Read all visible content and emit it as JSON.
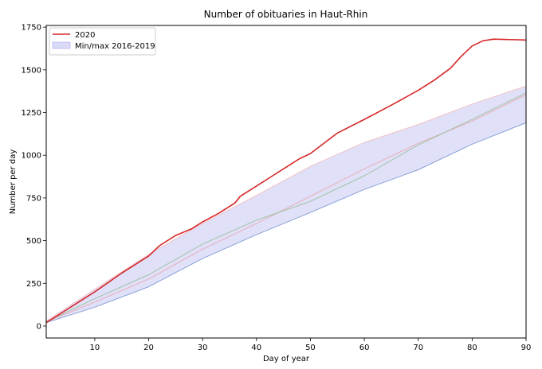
{
  "chart_data": {
    "type": "line",
    "title": "Number of obituaries in Haut-Rhin",
    "xlabel": "Day of year",
    "ylabel": "Number per day",
    "xlim": [
      1,
      90
    ],
    "ylim": [
      -70,
      1760
    ],
    "xticks": [
      10,
      20,
      30,
      40,
      50,
      60,
      70,
      80,
      90
    ],
    "yticks": [
      0,
      250,
      500,
      750,
      1000,
      1250,
      1500,
      1750
    ],
    "grid": false,
    "legend_position": "top-left",
    "legend": [
      {
        "label": "2020",
        "kind": "line",
        "color": "#d62728"
      },
      {
        "label": "Min/max 2016-2019",
        "kind": "band",
        "color": "#ccccf5"
      }
    ],
    "band": {
      "x": [
        1,
        10,
        20,
        30,
        40,
        50,
        60,
        70,
        80,
        90
      ],
      "lower": [
        20,
        110,
        230,
        395,
        535,
        665,
        800,
        915,
        1065,
        1190
      ],
      "upper": [
        30,
        215,
        420,
        600,
        765,
        935,
        1075,
        1180,
        1300,
        1405
      ]
    },
    "series": [
      {
        "name": "2020",
        "color": "#d62728",
        "x": [
          1,
          5,
          8,
          10,
          15,
          20,
          22,
          25,
          28,
          30,
          33,
          36,
          37,
          40,
          43,
          46,
          48,
          50,
          55,
          60,
          63,
          66,
          70,
          73,
          76,
          78,
          80,
          82,
          84,
          90
        ],
        "values": [
          20,
          100,
          160,
          200,
          310,
          410,
          470,
          530,
          570,
          610,
          660,
          720,
          760,
          820,
          880,
          940,
          980,
          1010,
          1130,
          1210,
          1260,
          1310,
          1380,
          1440,
          1510,
          1580,
          1640,
          1670,
          1680,
          1675
        ]
      },
      {
        "color": "#6f8fcf",
        "x": [
          1,
          10,
          20,
          30,
          40,
          50,
          60,
          70,
          80,
          90
        ],
        "values": [
          20,
          110,
          230,
          395,
          535,
          665,
          800,
          915,
          1065,
          1190
        ]
      },
      {
        "color": "#8fbc8f",
        "x": [
          1,
          10,
          20,
          30,
          40,
          50,
          60,
          70,
          80,
          90
        ],
        "values": [
          25,
          160,
          300,
          480,
          620,
          730,
          880,
          1060,
          1210,
          1365
        ]
      },
      {
        "color": "#e8a0a8",
        "x": [
          1,
          10,
          20,
          30,
          40,
          50,
          60,
          70,
          80,
          90
        ],
        "values": [
          25,
          140,
          275,
          450,
          600,
          760,
          920,
          1070,
          1200,
          1355
        ]
      },
      {
        "color": "#f2b6b6",
        "x": [
          1,
          10,
          20,
          30,
          40,
          50,
          60,
          70,
          80,
          90
        ],
        "values": [
          30,
          215,
          420,
          600,
          765,
          935,
          1075,
          1180,
          1300,
          1405
        ]
      }
    ]
  }
}
